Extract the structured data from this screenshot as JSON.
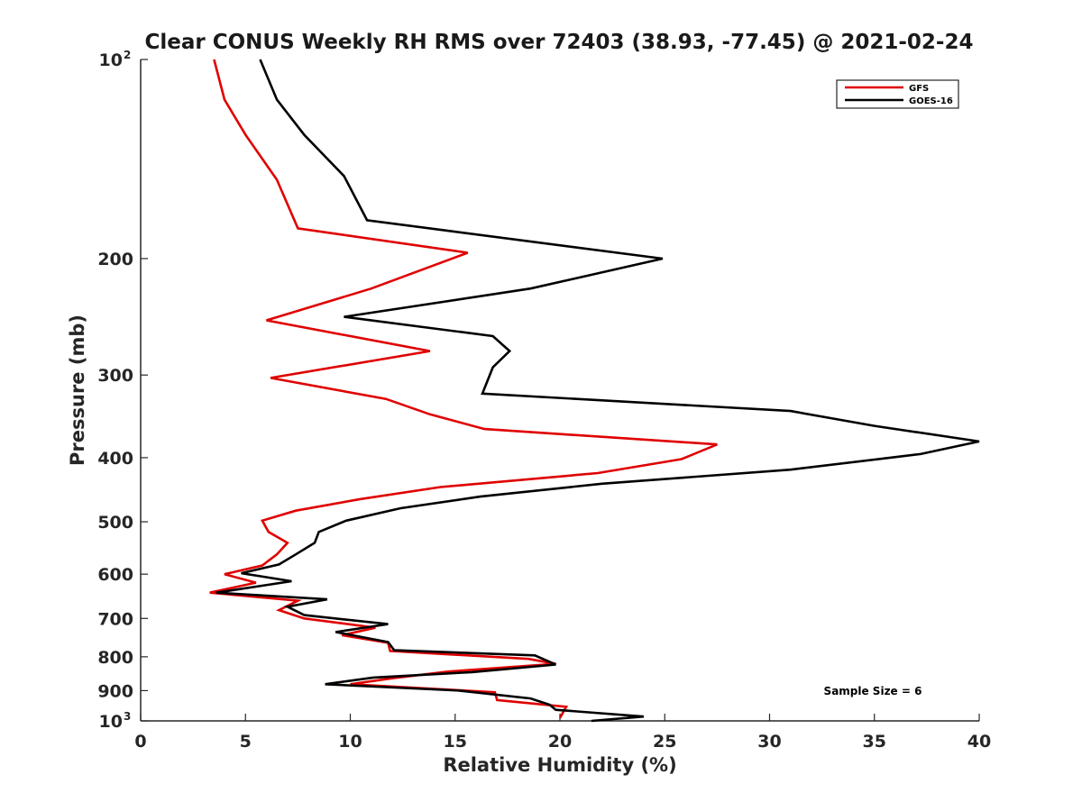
{
  "chart_data": {
    "type": "line",
    "title": "Clear CONUS Weekly RH RMS over 72403 (38.93, -77.45) @ 2021-02-24",
    "xlabel": "Relative Humidity (%)",
    "ylabel": "Pressure (mb)",
    "xlim": [
      0,
      40
    ],
    "ylim": [
      100,
      1000
    ],
    "y_scale": "log",
    "y_reversed": true,
    "x_ticks": [
      0,
      5,
      10,
      15,
      20,
      25,
      30,
      35,
      40
    ],
    "y_ticks": [
      {
        "value": 100,
        "label": "10",
        "sup": "2"
      },
      {
        "value": 200,
        "label": "200",
        "sup": ""
      },
      {
        "value": 300,
        "label": "300",
        "sup": ""
      },
      {
        "value": 400,
        "label": "400",
        "sup": ""
      },
      {
        "value": 500,
        "label": "500",
        "sup": ""
      },
      {
        "value": 600,
        "label": "600",
        "sup": ""
      },
      {
        "value": 700,
        "label": "700",
        "sup": ""
      },
      {
        "value": 800,
        "label": "800",
        "sup": ""
      },
      {
        "value": 900,
        "label": "900",
        "sup": ""
      },
      {
        "value": 1000,
        "label": "10",
        "sup": "3"
      }
    ],
    "legend_position": "top-right",
    "grid": false,
    "annotation": "Sample Size = 6",
    "series": [
      {
        "name": "GFS",
        "color": "#e00000",
        "points": [
          [
            3.5,
            100
          ],
          [
            4.0,
            115
          ],
          [
            5.0,
            130
          ],
          [
            6.5,
            152
          ],
          [
            7.5,
            180
          ],
          [
            15.6,
            196
          ],
          [
            11.0,
            222
          ],
          [
            6.0,
            248
          ],
          [
            13.8,
            276
          ],
          [
            6.2,
            303
          ],
          [
            11.7,
            326
          ],
          [
            13.8,
            344
          ],
          [
            16.4,
            362
          ],
          [
            27.5,
            382
          ],
          [
            25.8,
            402
          ],
          [
            21.8,
            422
          ],
          [
            14.3,
            443
          ],
          [
            10.5,
            462
          ],
          [
            7.4,
            481
          ],
          [
            5.8,
            498
          ],
          [
            6.1,
            518
          ],
          [
            7.0,
            538
          ],
          [
            6.5,
            560
          ],
          [
            5.8,
            582
          ],
          [
            4.0,
            600
          ],
          [
            5.5,
            618
          ],
          [
            3.3,
            640
          ],
          [
            7.5,
            658
          ],
          [
            6.6,
            680
          ],
          [
            7.8,
            700
          ],
          [
            11.2,
            723
          ],
          [
            9.6,
            742
          ],
          [
            11.8,
            762
          ],
          [
            11.9,
            784
          ],
          [
            18.5,
            806
          ],
          [
            19.8,
            820
          ],
          [
            14.7,
            842
          ],
          [
            12.0,
            862
          ],
          [
            10.0,
            880
          ],
          [
            16.9,
            905
          ],
          [
            17.0,
            930
          ],
          [
            20.3,
            952
          ],
          [
            20.0,
            990
          ]
        ]
      },
      {
        "name": "GOES-16",
        "color": "#000000",
        "points": [
          [
            5.7,
            100
          ],
          [
            6.5,
            115
          ],
          [
            7.8,
            130
          ],
          [
            9.7,
            150
          ],
          [
            10.8,
            175
          ],
          [
            24.9,
            200
          ],
          [
            18.6,
            222
          ],
          [
            9.7,
            245
          ],
          [
            16.8,
            262
          ],
          [
            17.6,
            276
          ],
          [
            16.8,
            292
          ],
          [
            16.3,
            320
          ],
          [
            31.0,
            340
          ],
          [
            35.0,
            358
          ],
          [
            40.0,
            378
          ],
          [
            37.2,
            395
          ],
          [
            31.0,
            417
          ],
          [
            22.0,
            438
          ],
          [
            16.2,
            458
          ],
          [
            12.4,
            477
          ],
          [
            9.8,
            498
          ],
          [
            8.5,
            518
          ],
          [
            8.3,
            538
          ],
          [
            7.4,
            560
          ],
          [
            6.6,
            580
          ],
          [
            4.8,
            598
          ],
          [
            7.2,
            615
          ],
          [
            3.6,
            640
          ],
          [
            8.9,
            655
          ],
          [
            7.0,
            672
          ],
          [
            7.8,
            692
          ],
          [
            11.8,
            714
          ],
          [
            9.3,
            734
          ],
          [
            11.8,
            760
          ],
          [
            12.1,
            782
          ],
          [
            18.8,
            796
          ],
          [
            19.8,
            822
          ],
          [
            15.8,
            844
          ],
          [
            11.1,
            860
          ],
          [
            8.8,
            880
          ],
          [
            15.2,
            900
          ],
          [
            18.6,
            925
          ],
          [
            19.5,
            945
          ],
          [
            19.8,
            962
          ],
          [
            24.0,
            985
          ],
          [
            21.5,
            1000
          ]
        ]
      }
    ]
  }
}
